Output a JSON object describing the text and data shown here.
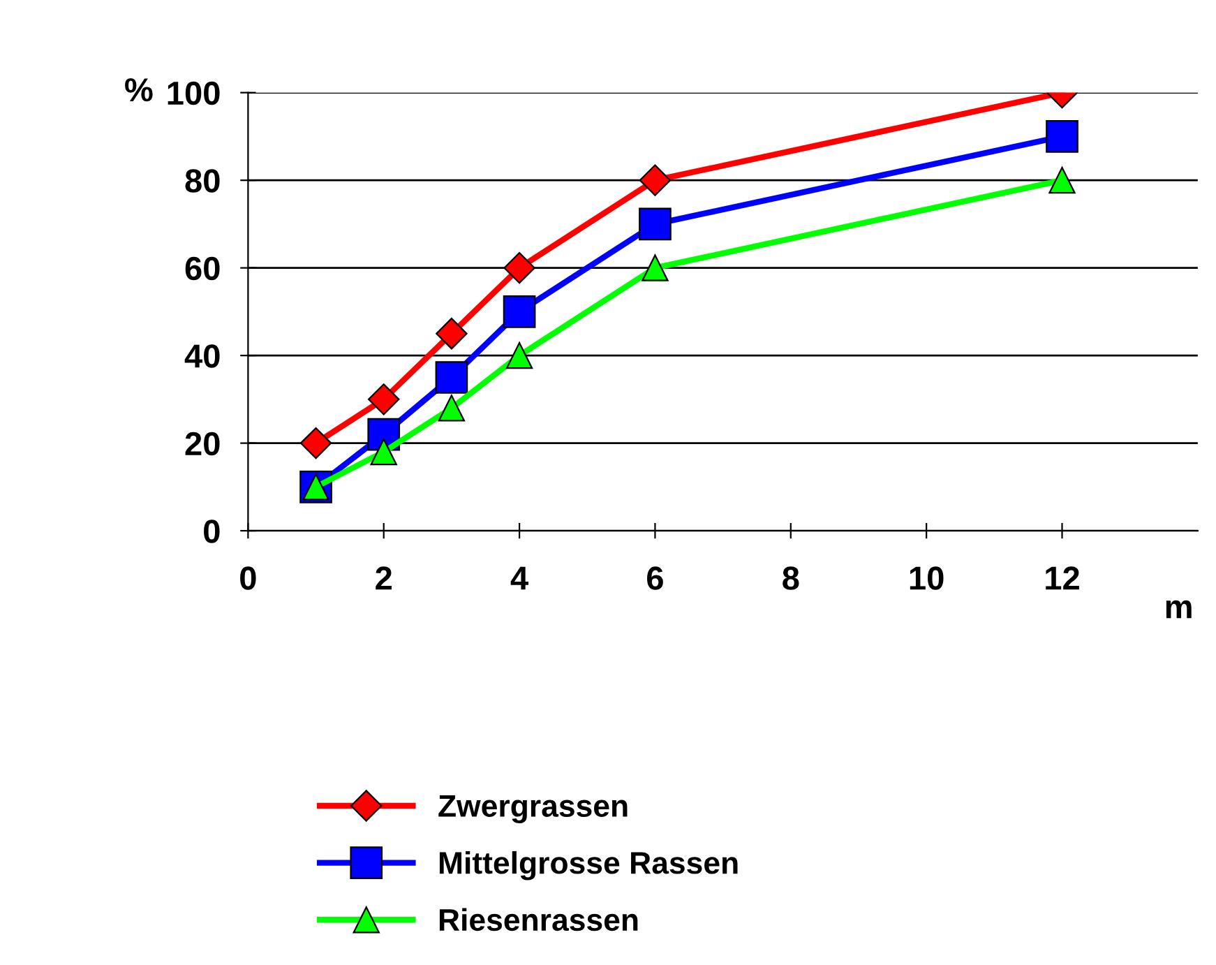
{
  "chart_data": {
    "type": "line",
    "ylabel": "%",
    "xlabel": "m",
    "x": [
      1,
      2,
      3,
      4,
      6,
      12
    ],
    "series": [
      {
        "name": "Zwergrassen",
        "color": "#ff0000",
        "marker": "diamond",
        "values": [
          20,
          30,
          45,
          60,
          80,
          100
        ]
      },
      {
        "name": "Mittelgrosse Rassen",
        "color": "#0000ff",
        "marker": "square",
        "values": [
          10,
          22,
          35,
          50,
          70,
          90
        ]
      },
      {
        "name": "Riesenrassen",
        "color": "#00ff00",
        "marker": "triangle",
        "values": [
          10,
          18,
          28,
          40,
          60,
          80
        ]
      }
    ],
    "xlim": [
      0,
      14
    ],
    "xticks": [
      0,
      2,
      4,
      6,
      8,
      10,
      12
    ],
    "ylim": [
      0,
      100
    ],
    "yticks": [
      0,
      20,
      40,
      60,
      80,
      100
    ],
    "grid": "y",
    "legend": "bottom",
    "line_style": "solid"
  }
}
